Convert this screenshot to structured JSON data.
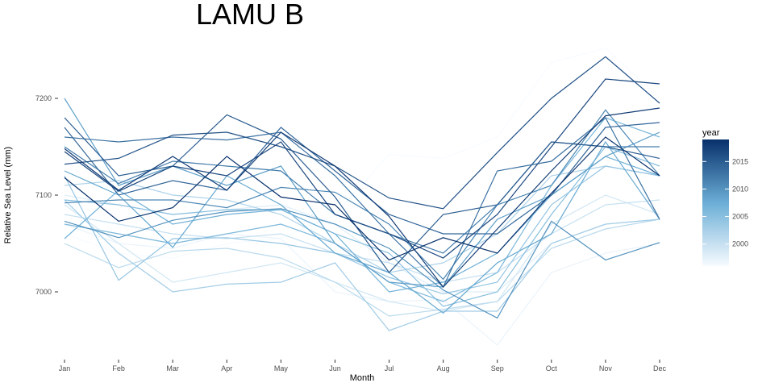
{
  "chart_data": {
    "type": "line",
    "title": "LAMU B",
    "xlabel": "Month",
    "ylabel": "Relative Sea Level (mm)",
    "categories": [
      "Jan",
      "Feb",
      "Mar",
      "Apr",
      "May",
      "Jun",
      "Jul",
      "Aug",
      "Sep",
      "Oct",
      "Nov",
      "Dec"
    ],
    "y_ticks": [
      7000,
      7100,
      7200
    ],
    "ylim": [
      6945,
      7255
    ],
    "grid": false,
    "legend": {
      "title": "year",
      "placement": "right",
      "type": "colorbar",
      "ticks": [
        2000,
        2005,
        2010,
        2015
      ],
      "range": [
        1996,
        2019
      ],
      "colors": [
        "#f7fbff",
        "#08306b"
      ]
    },
    "series": [
      {
        "year": 1996,
        "values": [
          7060,
          7040,
          7035,
          7050,
          7055,
          7080,
          7142,
          7138,
          7160,
          7237,
          7252,
          7200
        ]
      },
      {
        "year": 1997,
        "values": [
          7070,
          7050,
          7045,
          7060,
          7055,
          7000,
          6990,
          6992,
          6945,
          7020,
          7040,
          7050
        ]
      },
      {
        "year": 1998,
        "values": [
          7100,
          7090,
          7080,
          7085,
          7090,
          7070,
          7030,
          7000,
          7000,
          7050,
          7070,
          7075
        ]
      },
      {
        "year": 1999,
        "values": [
          7090,
          7050,
          7010,
          7020,
          7030,
          7010,
          6990,
          6980,
          6990,
          7070,
          7100,
          7080
        ]
      },
      {
        "year": 2000,
        "values": [
          7080,
          7070,
          7060,
          7055,
          7060,
          7040,
          7030,
          7010,
          7020,
          7060,
          7090,
          7095
        ]
      },
      {
        "year": 2001,
        "values": [
          7050,
          7025,
          7042,
          7045,
          7035,
          7010,
          6975,
          6982,
          6990,
          7045,
          7065,
          7075
        ]
      },
      {
        "year": 2002,
        "values": [
          7110,
          7115,
          7100,
          7095,
          7080,
          7050,
          7020,
          7030,
          7060,
          7120,
          7130,
          7120
        ]
      },
      {
        "year": 2003,
        "values": [
          7095,
          7040,
          7000,
          7008,
          7010,
          7030,
          6960,
          6980,
          6980,
          7050,
          7070,
          7075
        ]
      },
      {
        "year": 2004,
        "values": [
          7120,
          7012,
          7055,
          7056,
          7050,
          7040,
          7015,
          6998,
          7010,
          7090,
          7130,
          7120
        ]
      },
      {
        "year": 2005,
        "values": [
          7095,
          7090,
          7080,
          7085,
          7085,
          7060,
          7040,
          6985,
          7000,
          7080,
          7150,
          7130
        ]
      },
      {
        "year": 2006,
        "values": [
          7070,
          7060,
          7050,
          7060,
          7070,
          7050,
          7010,
          6990,
          7020,
          7110,
          7180,
          7160
        ]
      },
      {
        "year": 2007,
        "values": [
          7055,
          7105,
          7070,
          7080,
          7085,
          7060,
          7000,
          7010,
          7040,
          7100,
          7140,
          7120
        ]
      },
      {
        "year": 2008,
        "values": [
          7125,
          7100,
          7046,
          7120,
          7090,
          7040,
          7020,
          6978,
          7030,
          7060,
          7155,
          7075
        ]
      },
      {
        "year": 2009,
        "values": [
          7200,
          7110,
          7130,
          7110,
          7130,
          7050,
          7010,
          7005,
          7075,
          7100,
          7140,
          7165
        ]
      },
      {
        "year": 2010,
        "values": [
          7073,
          7056,
          7074,
          7083,
          7086,
          7070,
          7045,
          7002,
          6973,
          7073,
          7033,
          7051
        ]
      },
      {
        "year": 2011,
        "values": [
          7092,
          7095,
          7095,
          7087,
          7108,
          7103,
          7070,
          7013,
          7090,
          7110,
          7188,
          7120
        ]
      },
      {
        "year": 2012,
        "values": [
          7150,
          7112,
          7135,
          7130,
          7125,
          7080,
          7060,
          7040,
          7090,
          7155,
          7150,
          7150
        ]
      },
      {
        "year": 2013,
        "values": [
          7160,
          7155,
          7160,
          7157,
          7165,
          7120,
          7060,
          7005,
          7125,
          7135,
          7180,
          7075
        ]
      },
      {
        "year": 2014,
        "values": [
          7170,
          7100,
          7115,
          7105,
          7170,
          7125,
          7080,
          7060,
          7060,
          7100,
          7170,
          7175
        ]
      },
      {
        "year": 2015,
        "values": [
          7180,
          7120,
          7130,
          7183,
          7158,
          7098,
          7020,
          7080,
          7090,
          7155,
          7150,
          7138
        ]
      },
      {
        "year": 2016,
        "values": [
          7132,
          7138,
          7162,
          7165,
          7150,
          7130,
          7097,
          7086,
          7144,
          7200,
          7243,
          7195
        ]
      },
      {
        "year": 2017,
        "values": [
          7145,
          7104,
          7130,
          7120,
          7155,
          7080,
          7060,
          7035,
          7080,
          7150,
          7220,
          7215
        ]
      },
      {
        "year": 2018,
        "values": [
          7148,
          7105,
          7140,
          7105,
          7165,
          7130,
          7078,
          7005,
          7065,
          7125,
          7182,
          7190
        ]
      },
      {
        "year": 2019,
        "values": [
          7118,
          7073,
          7087,
          7140,
          7098,
          7090,
          7033,
          7056,
          7040,
          7102,
          7160,
          7120
        ]
      }
    ]
  }
}
